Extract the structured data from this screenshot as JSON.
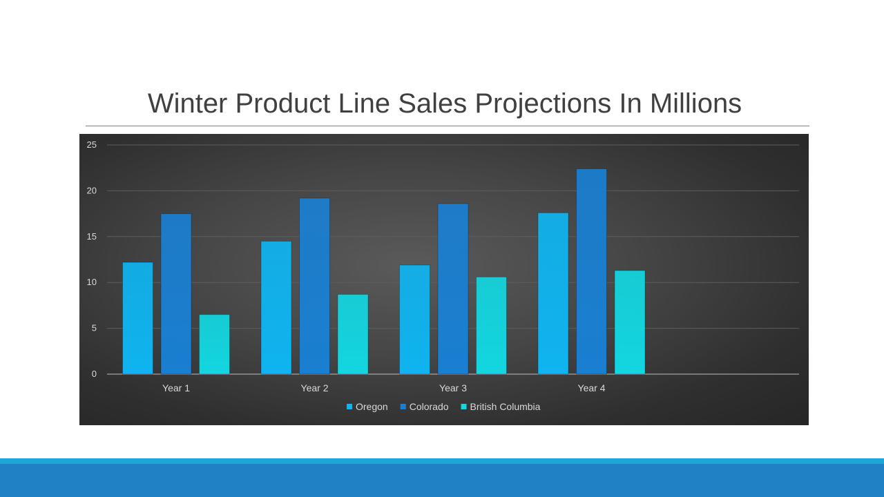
{
  "slide": {
    "title": "Winter Product Line Sales Projections In Millions"
  },
  "chart_data": {
    "type": "bar",
    "title": "",
    "xlabel": "",
    "ylabel": "",
    "categories": [
      "Year 1",
      "Year 2",
      "Year 3",
      "Year 4"
    ],
    "series": [
      {
        "name": "Oregon",
        "values": [
          12.2,
          14.5,
          11.9,
          17.6
        ],
        "color": "#0fb4f0"
      },
      {
        "name": "Colorado",
        "values": [
          17.5,
          19.2,
          18.6,
          22.4
        ],
        "color": "#1a7fd1"
      },
      {
        "name": "British Columbia",
        "values": [
          6.5,
          8.7,
          10.6,
          11.3
        ],
        "color": "#13d6e0"
      }
    ],
    "ylim": [
      0,
      25
    ],
    "yticks": [
      "0",
      "5",
      "10",
      "15",
      "20",
      "25"
    ],
    "grid": true,
    "legend_position": "bottom",
    "background": "#3a3a3a"
  }
}
